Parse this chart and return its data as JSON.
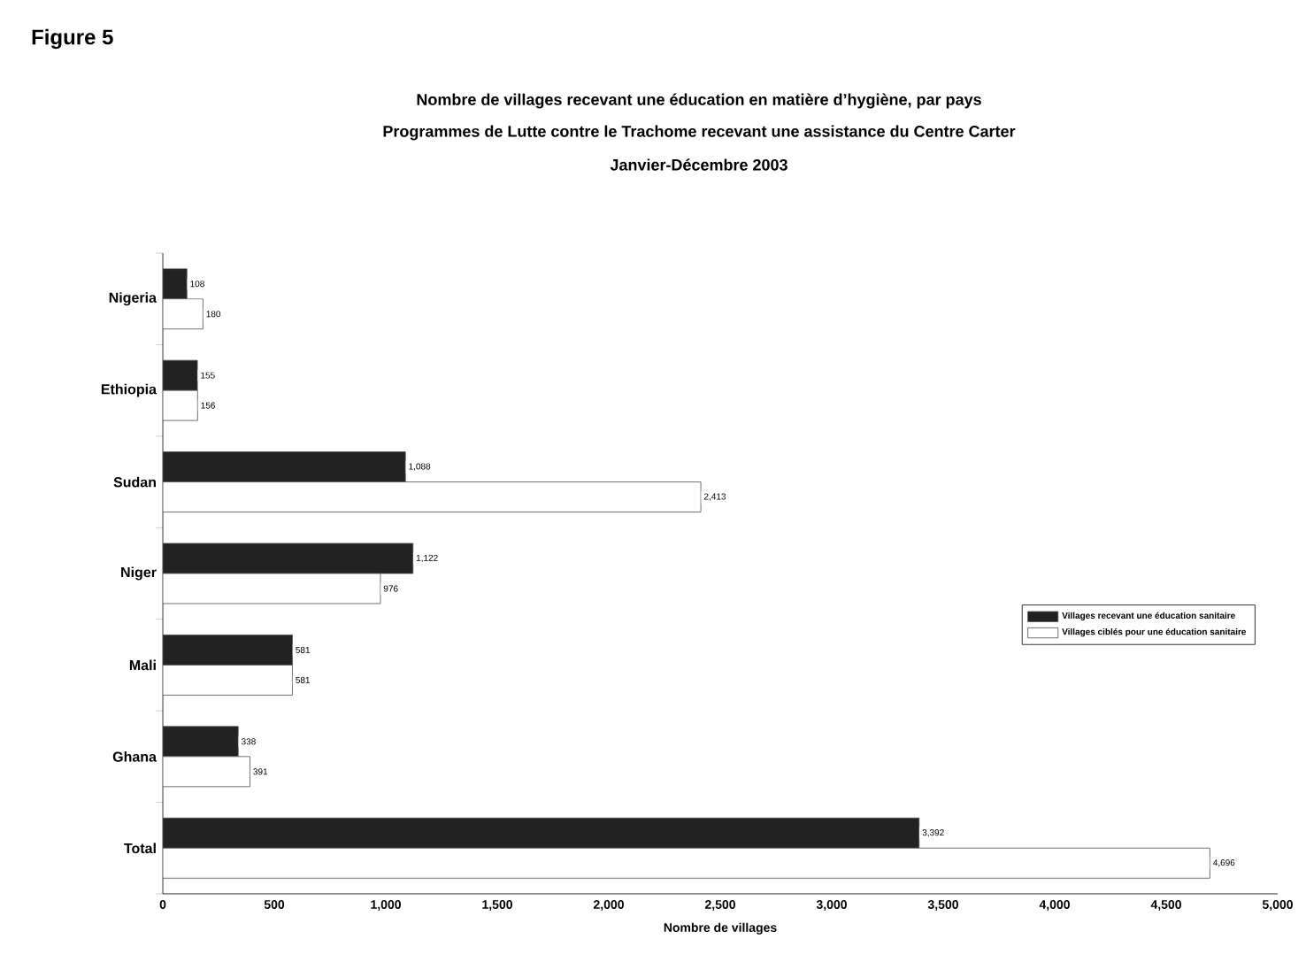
{
  "chart_data": {
    "type": "bar",
    "orientation": "horizontal",
    "title": "Nombre de villages recevant une éducation en matière d’hygiène, par pays",
    "subtitle": "Programmes de Lutte contre le Trachome recevant une assistance du Centre Carter",
    "annotations": [
      "Figure 5",
      "Janvier-Décembre 2003"
    ],
    "xlabel": "Nombre de villages",
    "categories": [
      "Nigeria",
      "Ethiopia",
      "Sudan",
      "Niger",
      "Mali",
      "Ghana",
      "Total"
    ],
    "series": [
      {
        "name": "Villages recevant une éducation sanitaire",
        "color": "#222222",
        "values": [
          108,
          155,
          1088,
          1122,
          581,
          338,
          3392
        ],
        "value_labels": [
          "108",
          "155",
          "1,088",
          "1,122",
          "581",
          "338",
          "3,392"
        ]
      },
      {
        "name": "Villages ciblés pour une éducation sanitaire",
        "color": "#ffffff",
        "values": [
          180,
          156,
          2413,
          976,
          581,
          391,
          4696
        ],
        "value_labels": [
          "180",
          "156",
          "2,413",
          "976",
          "581",
          "391",
          "4,696"
        ]
      }
    ],
    "xlim": [
      0,
      5000
    ],
    "xticks": [
      0,
      500,
      {
        "value": 1000,
        "label": "1,000"
      },
      {
        "value": 1500,
        "label": "1,500"
      },
      {
        "value": 2000,
        "label": "2,000"
      },
      {
        "value": 2500,
        "label": "2,500"
      },
      {
        "value": 3000,
        "label": "3,000"
      },
      {
        "value": 3500,
        "label": "3,500"
      },
      {
        "value": 4000,
        "label": "4,000"
      },
      {
        "value": 4500,
        "label": "4,500"
      },
      {
        "value": 5000,
        "label": "5,000"
      }
    ],
    "legend": "right",
    "grid": false
  }
}
